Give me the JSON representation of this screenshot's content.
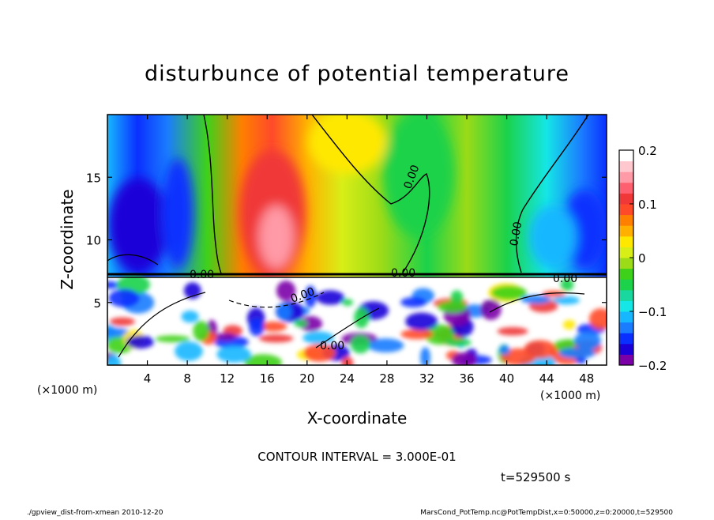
{
  "page": {
    "title": "disturbunce of potential temperature",
    "contour_interval": "CONTOUR INTERVAL = 3.000E-01",
    "time_label": "t=529500 s",
    "footer_left": "./gpview_dist-from-xmean  2010-12-20",
    "footer_right": "MarsCond_PotTemp.nc@PotTempDist,x=0:50000,z=0:20000,t=529500"
  },
  "chart_data": {
    "type": "heatmap",
    "title": "disturbunce of potential temperature",
    "xlabel": "X-coordinate",
    "ylabel": "Z-coordinate",
    "x_unit_label": "(×1000 m)",
    "y_unit_label": "(×1000 m)",
    "x_ticks": [
      4,
      8,
      12,
      16,
      20,
      24,
      28,
      32,
      36,
      40,
      44,
      48
    ],
    "y_ticks": [
      5,
      10,
      15
    ],
    "xlim": [
      0,
      50
    ],
    "ylim": [
      0,
      20
    ],
    "colorbar": {
      "range": [
        -0.2,
        0.2
      ],
      "tick_values": [
        0.2,
        0.1,
        0,
        -0.1,
        -0.2
      ],
      "tick_labels": [
        "0.2",
        "0.1",
        "0",
        "−0.1",
        "−0.2"
      ],
      "colors": [
        "#7b00a8",
        "#1b00d8",
        "#0a30ff",
        "#1a7cff",
        "#17b7ff",
        "#15e6e6",
        "#18d8a0",
        "#1bd24a",
        "#3ed11a",
        "#9bdb17",
        "#d8ee17",
        "#ffe800",
        "#ffb000",
        "#ff7f00",
        "#ff4a2a",
        "#f03838",
        "#ff6070",
        "#ff9aa6",
        "#ffc8cf",
        "#ffffff"
      ]
    },
    "contour_labels": [
      "0.00",
      "0.00",
      "0.00",
      "0.00",
      "0.00",
      "0.00",
      "0.00"
    ],
    "contour_interval": 0.3
  }
}
